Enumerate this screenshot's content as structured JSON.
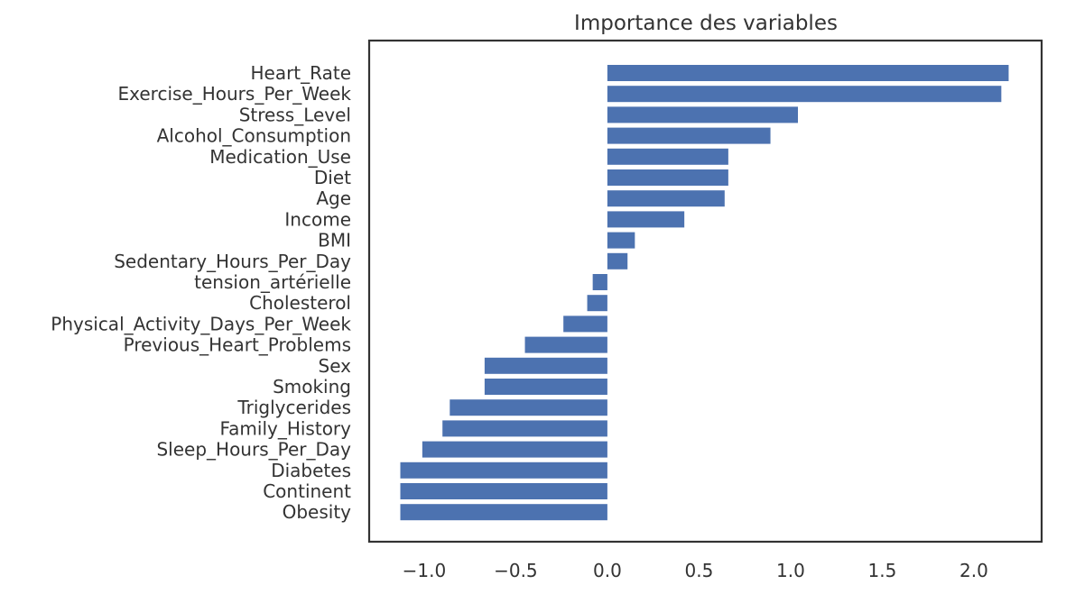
{
  "chart_data": {
    "type": "bar",
    "orientation": "horizontal",
    "title": "Importance des variables",
    "xlabel": "",
    "ylabel": "",
    "xlim": [
      -1.3,
      2.37
    ],
    "xticks": [
      -1.0,
      -0.5,
      0.0,
      0.5,
      1.0,
      1.5,
      2.0
    ],
    "xtick_labels": [
      "−1.0",
      "−0.5",
      "0.0",
      "0.5",
      "1.0",
      "1.5",
      "2.0"
    ],
    "grid": false,
    "bar_color": "#4c72b0",
    "categories": [
      "Heart_Rate",
      "Exercise_Hours_Per_Week",
      "Stress_Level",
      "Alcohol_Consumption",
      "Medication_Use",
      "Diet",
      "Age",
      "Income",
      "BMI",
      "Sedentary_Hours_Per_Day",
      "tension_artérielle",
      "Cholesterol",
      "Physical_Activity_Days_Per_Week",
      "Previous_Heart_Problems",
      "Sex",
      "Smoking",
      "Triglycerides",
      "Family_History",
      "Sleep_Hours_Per_Day",
      "Diabetes",
      "Continent",
      "Obesity"
    ],
    "values": [
      2.19,
      2.15,
      1.04,
      0.89,
      0.66,
      0.66,
      0.64,
      0.42,
      0.15,
      0.11,
      -0.08,
      -0.11,
      -0.24,
      -0.45,
      -0.67,
      -0.67,
      -0.86,
      -0.9,
      -1.01,
      -1.13,
      -1.13,
      -1.13
    ]
  }
}
